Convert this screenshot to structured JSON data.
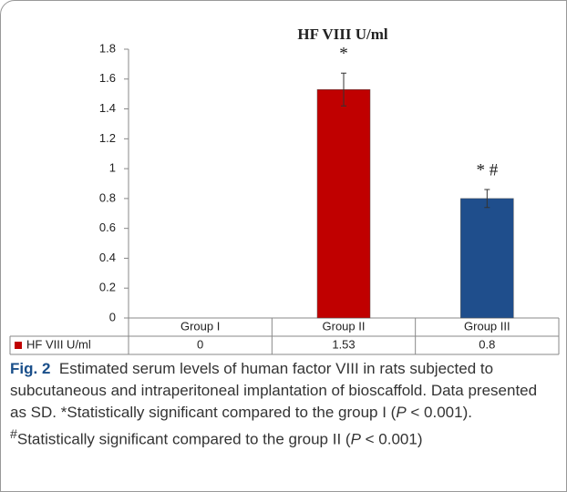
{
  "chart_data": {
    "type": "bar",
    "title": "HF VIII U/ml",
    "categories": [
      "Group I",
      "Group II",
      "Group III"
    ],
    "series": [
      {
        "name": "HF VIII U/ml",
        "color": "#c00000",
        "values": [
          0,
          1.53,
          0.8
        ],
        "errors": [
          null,
          0.11,
          0.06
        ],
        "colors": [
          "#c00000",
          "#c00000",
          "#1f4e8c"
        ]
      }
    ],
    "ylim": [
      0,
      1.8
    ],
    "yticks": [
      0,
      0.2,
      0.4,
      0.6,
      0.8,
      1,
      1.2,
      1.4,
      1.6,
      1.8
    ],
    "grid": false,
    "annotations": [
      {
        "category": "Group II",
        "text": "*"
      },
      {
        "category": "Group III",
        "text": "* #"
      }
    ]
  },
  "caption": {
    "label": "Fig. 2",
    "parts": [
      "Estimated serum levels of human factor VIII in rats subjected to subcutaneous and intraperitoneal implantation of bioscaffold. Data presented as SD. *Statistically significant compared to the group I (",
      "P",
      " < 0.001). ",
      "#",
      "Statistically significant compared to the group II (",
      "P",
      " < 0.001)"
    ]
  }
}
